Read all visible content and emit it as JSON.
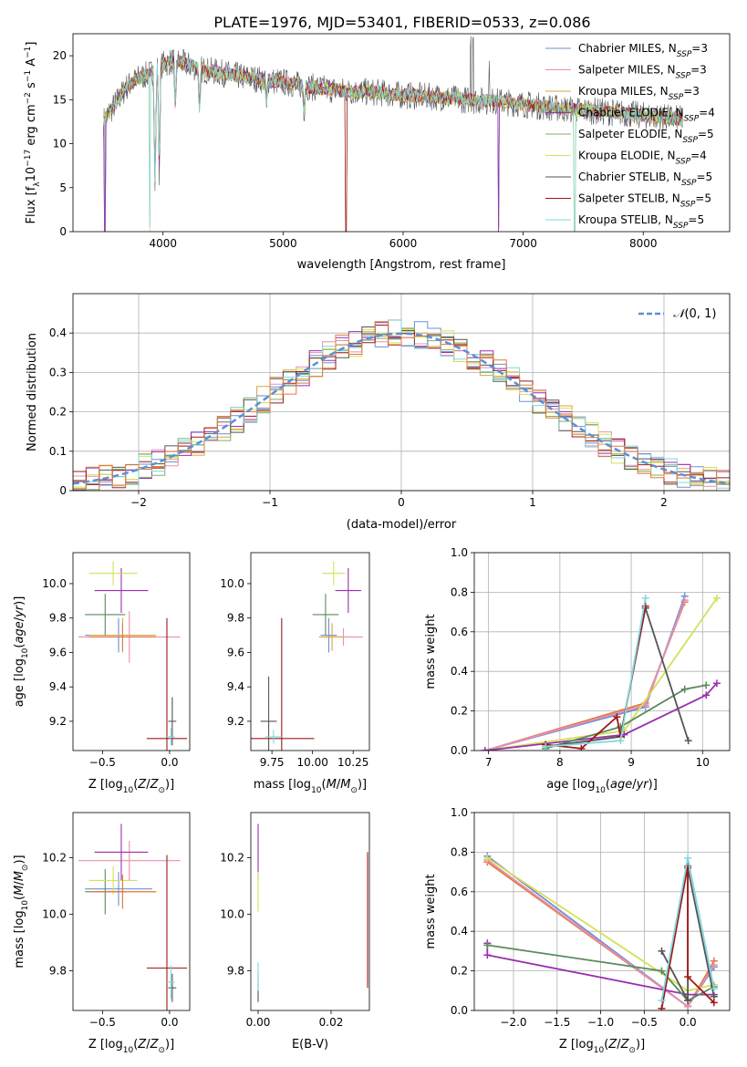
{
  "title": "PLATE=1976, MJD=53401, FIBERID=0533, z=0.086",
  "colors": {
    "chabrier_miles": "#6f8fd6",
    "salpeter_miles": "#e98fb0",
    "kroupa_miles": "#d9a441",
    "chabrier_elodie": "#9b2fae",
    "salpeter_elodie": "#7bb26a",
    "kroupa_elodie": "#d4e157",
    "chabrier_stelib": "#555555",
    "salpeter_stelib": "#a01818",
    "kroupa_stelib": "#7fd7dd",
    "orange": "#e07a3c",
    "green": "#5b8a5e",
    "normal_curve": "#5b8fd8"
  },
  "chart_data": [
    {
      "id": "spectrum",
      "type": "line",
      "title": "PLATE=1976, MJD=53401, FIBERID=0533, z=0.086",
      "xlabel": "wavelength [Angstrom, rest frame]",
      "ylabel": "Flux [f_λ 10^-17 erg cm^-2 s^-1 A^-1]",
      "xlim": [
        3250,
        8720
      ],
      "ylim": [
        0,
        22.5
      ],
      "xticks": [
        4000,
        5000,
        6000,
        7000,
        8000
      ],
      "yticks": [
        0,
        5,
        10,
        15,
        20
      ],
      "legend_position": "upper-right",
      "legend": [
        {
          "label": "Chabrier MILES, N",
          "sub": "SSP",
          "suffix": "=3",
          "color": "#6f8fd6"
        },
        {
          "label": "Salpeter MILES, N",
          "sub": "SSP",
          "suffix": "=3",
          "color": "#e98fb0"
        },
        {
          "label": "Kroupa MILES, N",
          "sub": "SSP",
          "suffix": "=3",
          "color": "#d9a441"
        },
        {
          "label": "Chabrier ELODIE, N",
          "sub": "SSP",
          "suffix": "=4",
          "color": "#9b2fae"
        },
        {
          "label": "Salpeter ELODIE, N",
          "sub": "SSP",
          "suffix": "=5",
          "color": "#7bb26a"
        },
        {
          "label": "Kroupa ELODIE, N",
          "sub": "SSP",
          "suffix": "=4",
          "color": "#d4e157"
        },
        {
          "label": "Chabrier STELIB, N",
          "sub": "SSP",
          "suffix": "=5",
          "color": "#555555"
        },
        {
          "label": "Salpeter STELIB, N",
          "sub": "SSP",
          "suffix": "=5",
          "color": "#a01818"
        },
        {
          "label": "Kroupa STELIB, N",
          "sub": "SSP",
          "suffix": "=5",
          "color": "#7fd7dd"
        }
      ],
      "continuum": {
        "x": [
          3500,
          3600,
          3700,
          3800,
          3900,
          4000,
          4100,
          4200,
          4300,
          4500,
          4700,
          5000,
          5200,
          5500,
          5800,
          6000,
          6300,
          6500,
          6800,
          7000,
          7300,
          7500,
          7800,
          8000,
          8300
        ],
        "y": [
          12.5,
          14.5,
          16.5,
          17.5,
          18.0,
          19.0,
          19.5,
          19.0,
          18.5,
          18.0,
          17.5,
          17.0,
          16.5,
          16.0,
          15.8,
          15.5,
          15.3,
          15.0,
          14.8,
          14.5,
          14.0,
          13.8,
          13.5,
          13.2,
          12.8
        ]
      },
      "absorption_lines": [
        {
          "x": 3934,
          "y": 4.5
        },
        {
          "x": 3969,
          "y": 6.5
        },
        {
          "x": 4102,
          "y": 14.0
        },
        {
          "x": 4305,
          "y": 13.5
        },
        {
          "x": 4861,
          "y": 14.5
        },
        {
          "x": 5175,
          "y": 13.5
        }
      ],
      "emission_spikes": [
        {
          "x": 6563,
          "y": 22.5
        },
        {
          "x": 6583,
          "y": 22.5
        },
        {
          "x": 6717,
          "y": 18.0
        }
      ],
      "dropouts": [
        {
          "x": 3515,
          "y": 0
        },
        {
          "x": 3890,
          "y": 0
        },
        {
          "x": 5525,
          "y": 0
        },
        {
          "x": 6795,
          "y": 0
        },
        {
          "x": 7430,
          "y": 0
        }
      ]
    },
    {
      "id": "residuals",
      "type": "line",
      "xlabel": "(data-model)/error",
      "ylabel": "Normed distribution",
      "xlim": [
        -2.5,
        2.5
      ],
      "ylim": [
        0,
        0.5
      ],
      "xticks": [
        -2,
        -1,
        0,
        1,
        2
      ],
      "yticks": [
        0.0,
        0.1,
        0.2,
        0.3,
        0.4
      ],
      "grid": true,
      "legend_position": "upper-right",
      "legend": [
        {
          "label": "N(0,1)",
          "style": "dashed"
        }
      ],
      "bin_width": 0.1
    },
    {
      "id": "age_vs_Z",
      "type": "scatter",
      "xlabel": "Z [log10(Z/Z⊙)]",
      "ylabel": "age  [log10(age/yr)]",
      "xlim": [
        -0.72,
        0.15
      ],
      "ylim": [
        9.03,
        10.18
      ],
      "xticks": [
        -0.5,
        0.0
      ],
      "yticks": [
        9.2,
        9.4,
        9.6,
        9.8,
        10.0
      ],
      "points": [
        {
          "x": -0.38,
          "y": 9.7,
          "xerr": 0.25,
          "yerr": 0.1,
          "color": "#6f8fd6"
        },
        {
          "x": -0.3,
          "y": 9.69,
          "xerr": 0.38,
          "yerr": 0.15,
          "color": "#e98fb0"
        },
        {
          "x": -0.35,
          "y": 9.7,
          "xerr": 0.25,
          "yerr": 0.1,
          "color": "#d9a441"
        },
        {
          "x": -0.36,
          "y": 9.96,
          "xerr": 0.2,
          "yerr": 0.13,
          "color": "#9b2fae"
        },
        {
          "x": -0.48,
          "y": 9.82,
          "xerr": 0.15,
          "yerr": 0.12,
          "color": "#5b8a5e"
        },
        {
          "x": -0.42,
          "y": 10.06,
          "xerr": 0.18,
          "yerr": 0.07,
          "color": "#d4e157"
        },
        {
          "x": 0.02,
          "y": 9.2,
          "xerr": 0.03,
          "yerr": 0.14,
          "color": "#555555"
        },
        {
          "x": -0.02,
          "y": 9.1,
          "xerr": 0.15,
          "yerr": 0.7,
          "color": "#a01818"
        },
        {
          "x": 0.01,
          "y": 9.11,
          "xerr": 0.03,
          "yerr": 0.05,
          "color": "#7fd7dd"
        },
        {
          "x": -0.35,
          "y": 9.69,
          "xerr": 0.25,
          "yerr": 0.08,
          "color": "#e07a3c"
        }
      ]
    },
    {
      "id": "age_vs_mass",
      "type": "scatter",
      "xlabel": "mass [log10(M/M⊙)]",
      "ylabel": "",
      "xlim": [
        9.62,
        10.35
      ],
      "ylim": [
        9.03,
        10.18
      ],
      "xticks": [
        9.75,
        10.0,
        10.25
      ],
      "yticks": [
        9.2,
        9.4,
        9.6,
        9.8,
        10.0
      ],
      "points": [
        {
          "x": 10.1,
          "y": 9.7,
          "xerr": 0.05,
          "yerr": 0.1,
          "color": "#6f8fd6"
        },
        {
          "x": 10.19,
          "y": 9.69,
          "xerr": 0.12,
          "yerr": 0.05,
          "color": "#e98fb0"
        },
        {
          "x": 10.12,
          "y": 9.69,
          "xerr": 0.08,
          "yerr": 0.08,
          "color": "#d9a441"
        },
        {
          "x": 10.22,
          "y": 9.96,
          "xerr": 0.08,
          "yerr": 0.13,
          "color": "#9b2fae"
        },
        {
          "x": 10.08,
          "y": 9.82,
          "xerr": 0.08,
          "yerr": 0.12,
          "color": "#5b8a5e"
        },
        {
          "x": 10.13,
          "y": 10.06,
          "xerr": 0.07,
          "yerr": 0.07,
          "color": "#d4e157"
        },
        {
          "x": 9.73,
          "y": 9.2,
          "xerr": 0.05,
          "yerr": 0.26,
          "color": "#555555"
        },
        {
          "x": 9.81,
          "y": 9.1,
          "xerr": 0.2,
          "yerr": 0.7,
          "color": "#a01818"
        },
        {
          "x": 9.76,
          "y": 9.11,
          "xerr": 0.05,
          "yerr": 0.04,
          "color": "#7fd7dd"
        }
      ]
    },
    {
      "id": "weight_vs_age",
      "type": "line",
      "xlabel": "age  [log10(age/yr)]",
      "ylabel": "mass weight",
      "xlim": [
        6.8,
        10.38
      ],
      "ylim": [
        0,
        1.0
      ],
      "xticks": [
        7,
        8,
        9,
        10
      ],
      "yticks": [
        0.0,
        0.2,
        0.4,
        0.6,
        0.8,
        1.0
      ],
      "grid": true,
      "series": [
        {
          "color": "#e07a3c",
          "x": [
            6.95,
            9.2,
            9.75
          ],
          "y": [
            0.0,
            0.24,
            0.75
          ]
        },
        {
          "color": "#6f8fd6",
          "x": [
            6.95,
            9.2,
            9.75
          ],
          "y": [
            0.0,
            0.22,
            0.78
          ]
        },
        {
          "color": "#e98fb0",
          "x": [
            6.95,
            9.2,
            9.75
          ],
          "y": [
            0.0,
            0.23,
            0.76
          ]
        },
        {
          "color": "#d4e157",
          "x": [
            6.95,
            8.9,
            10.2
          ],
          "y": [
            0.0,
            0.1,
            0.77
          ]
        },
        {
          "color": "#9b2fae",
          "x": [
            6.95,
            8.9,
            10.05,
            10.2
          ],
          "y": [
            0.0,
            0.08,
            0.28,
            0.34
          ]
        },
        {
          "color": "#5b8a5e",
          "x": [
            7.8,
            8.85,
            9.75,
            10.05
          ],
          "y": [
            0.01,
            0.12,
            0.31,
            0.33
          ]
        },
        {
          "color": "#555555",
          "x": [
            7.8,
            8.85,
            9.2,
            9.8
          ],
          "y": [
            0.02,
            0.07,
            0.72,
            0.05
          ]
        },
        {
          "color": "#a01818",
          "x": [
            7.8,
            8.3,
            8.8,
            8.85,
            9.2
          ],
          "y": [
            0.03,
            0.01,
            0.17,
            0.07,
            0.73
          ]
        },
        {
          "color": "#7fd7dd",
          "x": [
            7.8,
            8.85,
            9.2
          ],
          "y": [
            0.02,
            0.05,
            0.77
          ]
        }
      ]
    },
    {
      "id": "mass_vs_Z",
      "type": "scatter",
      "xlabel": "Z [log10(Z/Z⊙)]",
      "ylabel": "mass [log10(M/M⊙)]",
      "xlim": [
        -0.72,
        0.15
      ],
      "ylim": [
        9.66,
        10.36
      ],
      "xticks": [
        -0.5,
        0.0
      ],
      "yticks": [
        9.8,
        10.0,
        10.2
      ],
      "points": [
        {
          "x": -0.38,
          "y": 10.09,
          "xerr": 0.25,
          "yerr": 0.06,
          "color": "#6f8fd6"
        },
        {
          "x": -0.3,
          "y": 10.19,
          "xerr": 0.38,
          "yerr": 0.07,
          "color": "#e98fb0"
        },
        {
          "x": -0.35,
          "y": 10.08,
          "xerr": 0.25,
          "yerr": 0.06,
          "color": "#d9a441"
        },
        {
          "x": -0.36,
          "y": 10.22,
          "xerr": 0.2,
          "yerr": 0.1,
          "color": "#9b2fae"
        },
        {
          "x": -0.48,
          "y": 10.08,
          "xerr": 0.15,
          "yerr": 0.08,
          "color": "#5b8a5e"
        },
        {
          "x": -0.42,
          "y": 10.12,
          "xerr": 0.18,
          "yerr": 0.05,
          "color": "#d4e157"
        },
        {
          "x": 0.02,
          "y": 9.74,
          "xerr": 0.03,
          "yerr": 0.05,
          "color": "#555555"
        },
        {
          "x": -0.02,
          "y": 9.81,
          "xerr": 0.15,
          "yerr": 0.4,
          "color": "#a01818"
        },
        {
          "x": 0.01,
          "y": 9.76,
          "xerr": 0.03,
          "yerr": 0.06,
          "color": "#7fd7dd"
        },
        {
          "x": -0.35,
          "y": 10.08,
          "xerr": 0.25,
          "yerr": 0.06,
          "color": "#e07a3c"
        }
      ]
    },
    {
      "id": "mass_vs_ebv",
      "type": "scatter",
      "xlabel": "E(B-V)",
      "ylabel": "",
      "xlim": [
        -0.002,
        0.0305
      ],
      "ylim": [
        9.66,
        10.36
      ],
      "xticks": [
        0.0,
        0.02
      ],
      "yticks": [
        9.8,
        10.0,
        10.2
      ],
      "points": [
        {
          "x": 0.0,
          "y": 10.22,
          "xerr": 0,
          "yerr": 0.1,
          "color": "#9b2fae"
        },
        {
          "x": 0.0,
          "y": 10.08,
          "xerr": 0,
          "yerr": 0.07,
          "color": "#d4e157"
        },
        {
          "x": 0.0,
          "y": 9.74,
          "xerr": 0,
          "yerr": 0.05,
          "color": "#555555"
        },
        {
          "x": 0.0,
          "y": 9.78,
          "xerr": 0,
          "yerr": 0.05,
          "color": "#7fd7dd"
        },
        {
          "x": 0.03,
          "y": 9.98,
          "xerr": 0,
          "yerr": 0.24,
          "color": "#a01818"
        }
      ]
    },
    {
      "id": "weight_vs_Z",
      "type": "line",
      "xlabel": "Z [log10(Z/Z⊙)]",
      "ylabel": "mass weight",
      "xlim": [
        -2.45,
        0.48
      ],
      "ylim": [
        0,
        1.0
      ],
      "xticks": [
        -2.0,
        -1.5,
        -1.0,
        -0.5,
        0.0
      ],
      "yticks": [
        0.0,
        0.2,
        0.4,
        0.6,
        0.8,
        1.0
      ],
      "grid": true,
      "series": [
        {
          "color": "#e07a3c",
          "x": [
            -2.3,
            0.0,
            0.3
          ],
          "y": [
            0.75,
            0.02,
            0.25
          ]
        },
        {
          "color": "#6f8fd6",
          "x": [
            -2.3,
            0.0,
            0.3
          ],
          "y": [
            0.78,
            0.02,
            0.22
          ]
        },
        {
          "color": "#e98fb0",
          "x": [
            -2.3,
            0.0,
            0.3
          ],
          "y": [
            0.76,
            0.02,
            0.23
          ]
        },
        {
          "color": "#d4e157",
          "x": [
            -2.3,
            0.0,
            0.3
          ],
          "y": [
            0.77,
            0.1,
            0.13
          ]
        },
        {
          "color": "#9b2fae",
          "x": [
            -2.3,
            -2.3,
            0.0,
            0.3
          ],
          "y": [
            0.34,
            0.28,
            0.08,
            0.08
          ]
        },
        {
          "color": "#5b8a5e",
          "x": [
            -2.3,
            -0.3,
            0.0,
            0.3
          ],
          "y": [
            0.33,
            0.2,
            0.05,
            0.12
          ]
        },
        {
          "color": "#555555",
          "x": [
            -0.3,
            0.0,
            0.0,
            0.3
          ],
          "y": [
            0.3,
            0.05,
            0.72,
            0.07
          ]
        },
        {
          "color": "#a01818",
          "x": [
            -0.3,
            0.0,
            0.0,
            0.3
          ],
          "y": [
            0.01,
            0.73,
            0.17,
            0.04
          ]
        },
        {
          "color": "#7fd7dd",
          "x": [
            -0.3,
            0.0,
            0.3
          ],
          "y": [
            0.05,
            0.77,
            0.11
          ]
        }
      ]
    }
  ]
}
